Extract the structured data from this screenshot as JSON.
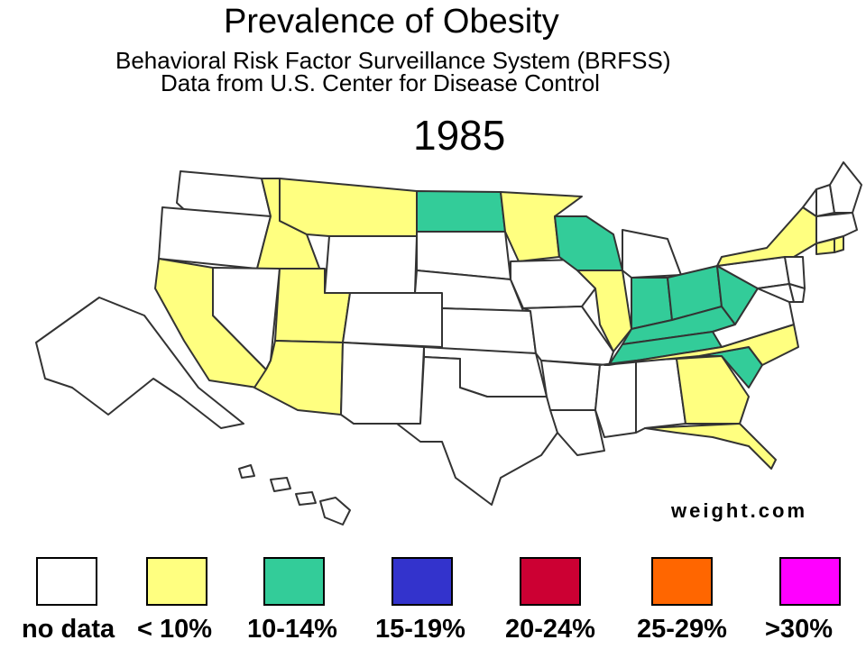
{
  "header": {
    "title": "Prevalence of Obesity",
    "subtitle_line1": "Behavioral Risk Factor Surveillance System (BRFSS)",
    "subtitle_line2": "Data from U.S. Center for Disease Control",
    "year": "1985"
  },
  "credit": "weight.com",
  "colors": {
    "no_data": "#ffffff",
    "lt10": "#ffff80",
    "10_14": "#33cc99",
    "15_19": "#3333cc",
    "20_24": "#cc0033",
    "25_29": "#ff6600",
    "gt30": "#ff00ff",
    "border": "#333333"
  },
  "legend": [
    {
      "label": "no data",
      "category": "no_data"
    },
    {
      "label": "< 10%",
      "category": "lt10"
    },
    {
      "label": "10-14%",
      "category": "10_14"
    },
    {
      "label": "15-19%",
      "category": "15_19"
    },
    {
      "label": "20-24%",
      "category": "20_24"
    },
    {
      "label": "25-29%",
      "category": "25_29"
    },
    {
      "label": ">30%",
      "category": "gt30"
    }
  ],
  "states": {
    "WA": "no_data",
    "OR": "no_data",
    "ID": "lt10",
    "MT": "lt10",
    "ND": "10_14",
    "MN": "lt10",
    "WI": "10_14",
    "MI": "no_data",
    "NY": "lt10",
    "VT": "no_data",
    "NH": "no_data",
    "ME": "no_data",
    "MA": "no_data",
    "CT": "lt10",
    "RI": "lt10",
    "CA": "lt10",
    "NV": "no_data",
    "UT": "lt10",
    "AZ": "lt10",
    "WY": "no_data",
    "CO": "no_data",
    "NM": "no_data",
    "SD": "no_data",
    "NE": "no_data",
    "KS": "no_data",
    "OK": "no_data",
    "TX": "no_data",
    "IA": "no_data",
    "MO": "no_data",
    "AR": "no_data",
    "LA": "no_data",
    "IL": "lt10",
    "IN": "10_14",
    "OH": "10_14",
    "KY": "10_14",
    "WV": "10_14",
    "TN": "10_14",
    "MS": "no_data",
    "AL": "no_data",
    "GA": "lt10",
    "FL": "lt10",
    "SC": "10_14",
    "NC": "lt10",
    "VA": "no_data",
    "PA": "no_data",
    "NJ": "no_data",
    "DE": "no_data",
    "MD": "no_data",
    "AK": "no_data",
    "HI": "no_data"
  }
}
